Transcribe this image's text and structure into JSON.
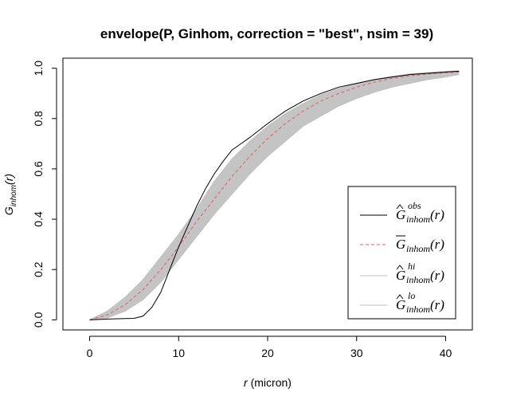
{
  "chart_data": {
    "type": "line",
    "title": "envelope(P, Ginhom, correction = \"best\", nsim = 39)",
    "xlabel": {
      "var": "r",
      "unit": " (micron)"
    },
    "ylabel": {
      "base": "G",
      "sub": "inhom",
      "arg": "(r)"
    },
    "xlim": [
      -3,
      43
    ],
    "ylim": [
      -0.04,
      1.04
    ],
    "x_ticks": [
      0,
      10,
      20,
      30,
      40
    ],
    "x_tick_labels": [
      "0",
      "10",
      "20",
      "30",
      "40"
    ],
    "y_ticks": [
      0.0,
      0.2,
      0.4,
      0.6,
      0.8,
      1.0
    ],
    "y_tick_labels": [
      "0.0",
      "0.2",
      "0.4",
      "0.6",
      "0.8",
      "1.0"
    ],
    "grid": false,
    "legend_position": "bottom-right",
    "series": [
      {
        "key": "obs",
        "color": "#000000",
        "style": "solid",
        "legend": {
          "accent": "hat",
          "base": "G",
          "sup": "obs",
          "sub": "inhom",
          "arg": "(r)"
        },
        "x": [
          0,
          2,
          4,
          5,
          6,
          7,
          8,
          9,
          10,
          11,
          12,
          13,
          14,
          15,
          16,
          17,
          18,
          20,
          22,
          24,
          26,
          28,
          30,
          32,
          34,
          36,
          38,
          40,
          41.5
        ],
        "y": [
          0.0,
          0.003,
          0.005,
          0.006,
          0.015,
          0.05,
          0.11,
          0.2,
          0.29,
          0.37,
          0.45,
          0.52,
          0.58,
          0.63,
          0.675,
          0.7,
          0.725,
          0.78,
          0.83,
          0.87,
          0.9,
          0.925,
          0.94,
          0.955,
          0.965,
          0.975,
          0.98,
          0.985,
          0.988
        ]
      },
      {
        "key": "theo",
        "color": "#e05a6a",
        "style": "dashed",
        "legend": {
          "accent": "bar",
          "base": "G",
          "sup": "",
          "sub": "inhom",
          "arg": "(r)"
        },
        "x": [
          0,
          2,
          4,
          6,
          8,
          10,
          12,
          14,
          16,
          18,
          20,
          22,
          24,
          26,
          28,
          30,
          32,
          34,
          36,
          38,
          40,
          41.5
        ],
        "y": [
          0.0,
          0.02,
          0.06,
          0.12,
          0.2,
          0.29,
          0.39,
          0.48,
          0.57,
          0.65,
          0.72,
          0.78,
          0.83,
          0.87,
          0.9,
          0.925,
          0.945,
          0.96,
          0.97,
          0.977,
          0.982,
          0.985
        ]
      },
      {
        "key": "hi",
        "color": "#bfbfbf",
        "style": "solid",
        "legend": {
          "accent": "hat",
          "base": "G",
          "sup": "hi",
          "sub": "inhom",
          "arg": "(r)"
        },
        "x": [
          0,
          2,
          4,
          6,
          8,
          10,
          12,
          14,
          16,
          18,
          20,
          22,
          24,
          26,
          28,
          30,
          32,
          34,
          36,
          38,
          40,
          41.5
        ],
        "y": [
          0.0,
          0.035,
          0.09,
          0.16,
          0.25,
          0.34,
          0.44,
          0.55,
          0.64,
          0.71,
          0.77,
          0.82,
          0.86,
          0.895,
          0.92,
          0.94,
          0.955,
          0.968,
          0.977,
          0.983,
          0.987,
          0.99
        ]
      },
      {
        "key": "lo",
        "color": "#bfbfbf",
        "style": "solid",
        "legend": {
          "accent": "hat",
          "base": "G",
          "sup": "lo",
          "sub": "inhom",
          "arg": "(r)"
        },
        "x": [
          0,
          2,
          4,
          6,
          8,
          10,
          12,
          14,
          16,
          18,
          20,
          22,
          24,
          26,
          28,
          30,
          32,
          34,
          36,
          38,
          40,
          41.5
        ],
        "y": [
          0.0,
          0.008,
          0.035,
          0.08,
          0.15,
          0.24,
          0.33,
          0.42,
          0.5,
          0.58,
          0.65,
          0.71,
          0.77,
          0.81,
          0.85,
          0.88,
          0.905,
          0.925,
          0.94,
          0.955,
          0.965,
          0.975
        ]
      }
    ]
  }
}
